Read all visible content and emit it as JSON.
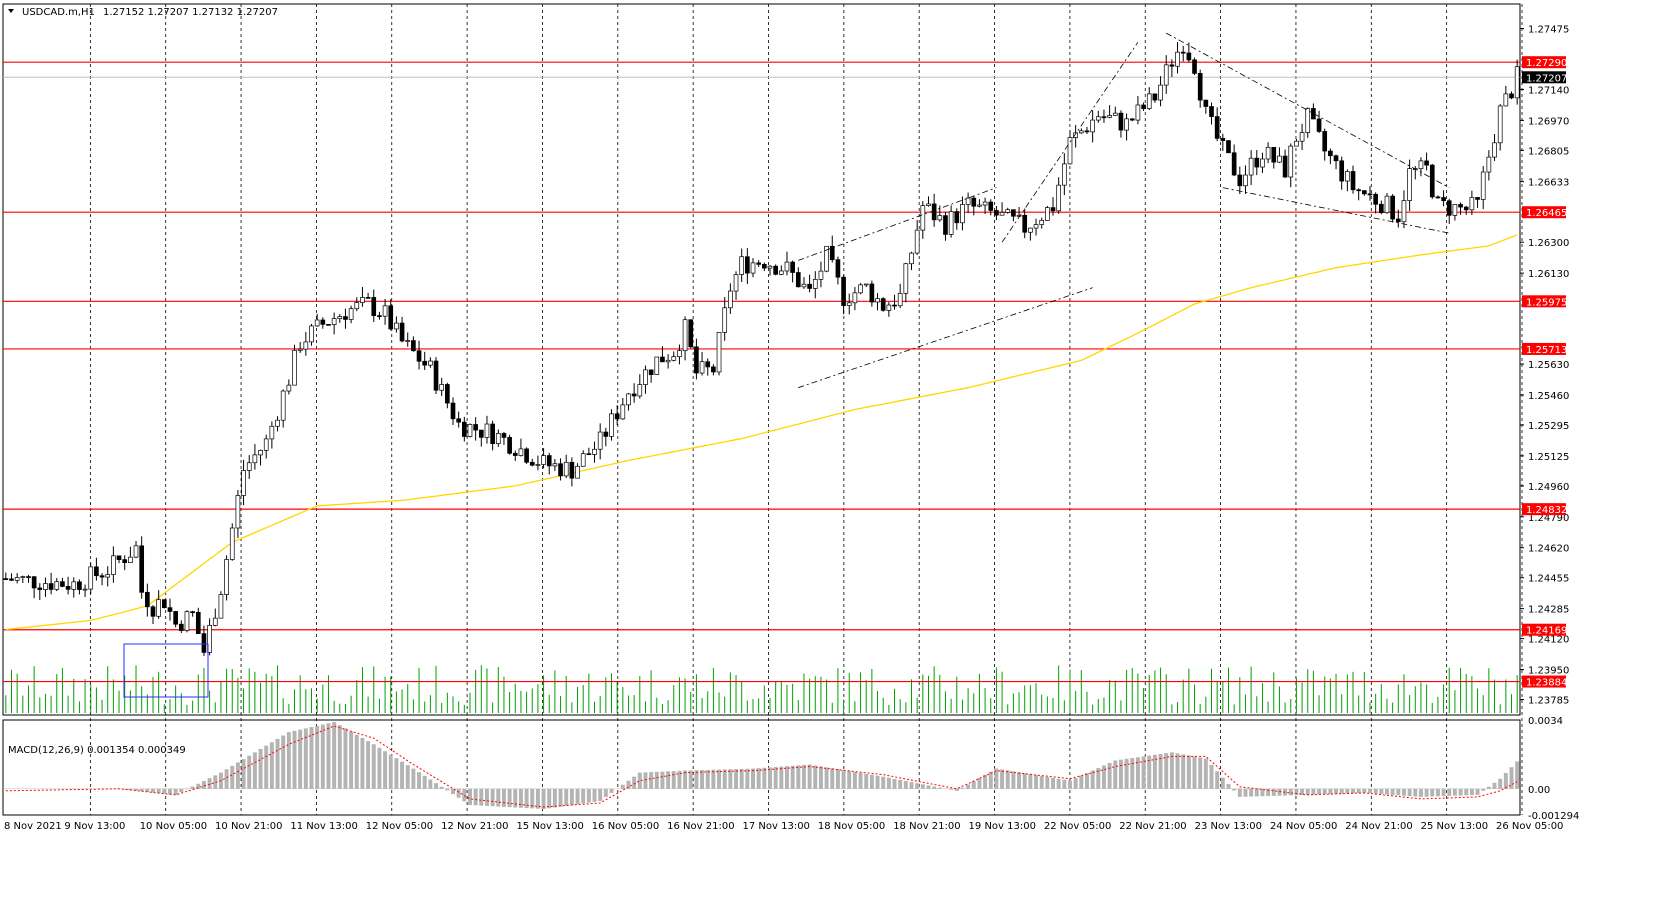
{
  "header": {
    "symbol_label": "USDCAD.m,H1",
    "ohlc_label": "1.27152 1.27207 1.27132 1.27207"
  },
  "macd_label": "MACD(12,26,9) 0.001354 0.000349",
  "colors": {
    "background": "#ffffff",
    "grid": "#000000",
    "candle": "#000000",
    "volume": "#00a000",
    "level": "#ff0000",
    "ma": "#ffd700",
    "macd_hist": "#b4b4b4",
    "signal": "#ff0000",
    "selection_box": "#2b2bff"
  },
  "chart_data": {
    "type": "candlestick",
    "symbol": "USDCAD.m",
    "timeframe": "H1",
    "price_axis": {
      "range": [
        1.237,
        1.2761
      ],
      "tick_labels": [
        "1.27475",
        "1.27140",
        "1.26970",
        "1.26805",
        "1.26633",
        "1.26300",
        "1.26130",
        "1.25630",
        "1.25460",
        "1.25295",
        "1.25125",
        "1.24960",
        "1.24790",
        "1.24620",
        "1.24455",
        "1.24285",
        "1.24120",
        "1.23950",
        "1.23785"
      ]
    },
    "levels": [
      {
        "value": 1.2729,
        "label": "1.27290"
      },
      {
        "value": 1.26465,
        "label": "1.26465"
      },
      {
        "value": 1.25975,
        "label": "1.25975"
      },
      {
        "value": 1.25713,
        "label": "1.25713"
      },
      {
        "value": 1.24832,
        "label": "1.24832"
      },
      {
        "value": 1.24169,
        "label": "1.24169"
      },
      {
        "value": 1.23884,
        "label": "1.23884"
      }
    ],
    "current_price": {
      "value": 1.27207,
      "label": "1.27207"
    },
    "time_labels": [
      "8 Nov 2021",
      "9 Nov 13:00",
      "10 Nov 05:00",
      "10 Nov 21:00",
      "11 Nov 13:00",
      "12 Nov 05:00",
      "12 Nov 21:00",
      "15 Nov 13:00",
      "16 Nov 05:00",
      "16 Nov 21:00",
      "17 Nov 13:00",
      "18 Nov 05:00",
      "18 Nov 21:00",
      "19 Nov 13:00",
      "22 Nov 05:00",
      "22 Nov 21:00",
      "23 Nov 13:00",
      "24 Nov 05:00",
      "24 Nov 21:00",
      "25 Nov 13:00",
      "26 Nov 05:00"
    ],
    "close_path": [
      [
        0,
        1.2445
      ],
      [
        12,
        1.2442
      ],
      [
        18,
        1.245
      ],
      [
        23,
        1.2462
      ],
      [
        24,
        1.2438
      ],
      [
        26,
        1.243
      ],
      [
        28,
        1.2433
      ],
      [
        30,
        1.242
      ],
      [
        33,
        1.2425
      ],
      [
        35,
        1.2405
      ],
      [
        38,
        1.244
      ],
      [
        42,
        1.2505
      ],
      [
        46,
        1.252
      ],
      [
        50,
        1.2555
      ],
      [
        52,
        1.2575
      ],
      [
        56,
        1.2585
      ],
      [
        60,
        1.2592
      ],
      [
        64,
        1.2596
      ],
      [
        67,
        1.259
      ],
      [
        70,
        1.2575
      ],
      [
        75,
        1.256
      ],
      [
        80,
        1.253
      ],
      [
        86,
        1.2525
      ],
      [
        90,
        1.2518
      ],
      [
        95,
        1.2508
      ],
      [
        100,
        1.2505
      ],
      [
        105,
        1.252
      ],
      [
        110,
        1.2548
      ],
      [
        115,
        1.2565
      ],
      [
        118,
        1.257
      ],
      [
        120,
        1.2582
      ],
      [
        122,
        1.2558
      ],
      [
        125,
        1.256
      ],
      [
        128,
        1.2605
      ],
      [
        130,
        1.2618
      ],
      [
        134,
        1.262
      ],
      [
        138,
        1.2615
      ],
      [
        142,
        1.2602
      ],
      [
        145,
        1.2622
      ],
      [
        148,
        1.26
      ],
      [
        152,
        1.2605
      ],
      [
        155,
        1.2595
      ],
      [
        158,
        1.26
      ],
      [
        162,
        1.265
      ],
      [
        166,
        1.264
      ],
      [
        170,
        1.265
      ],
      [
        175,
        1.2645
      ],
      [
        180,
        1.2638
      ],
      [
        185,
        1.265
      ],
      [
        188,
        1.2685
      ],
      [
        193,
        1.27
      ],
      [
        198,
        1.2695
      ],
      [
        203,
        1.271
      ],
      [
        206,
        1.273
      ],
      [
        208,
        1.274
      ],
      [
        210,
        1.2728
      ],
      [
        212,
        1.27
      ],
      [
        215,
        1.268
      ],
      [
        218,
        1.2665
      ],
      [
        222,
        1.268
      ],
      [
        226,
        1.267
      ],
      [
        228,
        1.2688
      ],
      [
        230,
        1.2698
      ],
      [
        233,
        1.268
      ],
      [
        238,
        1.266
      ],
      [
        243,
        1.2652
      ],
      [
        246,
        1.2645
      ],
      [
        248,
        1.2668
      ],
      [
        251,
        1.267
      ],
      [
        253,
        1.265
      ],
      [
        258,
        1.2648
      ],
      [
        260,
        1.265
      ],
      [
        261,
        1.2665
      ],
      [
        264,
        1.2702
      ],
      [
        266,
        1.2714
      ],
      [
        267,
        1.27207
      ]
    ],
    "moving_average": [
      [
        0,
        1.2417
      ],
      [
        15,
        1.2422
      ],
      [
        25,
        1.243
      ],
      [
        40,
        1.2465
      ],
      [
        55,
        1.2485
      ],
      [
        70,
        1.2488
      ],
      [
        90,
        1.2496
      ],
      [
        110,
        1.251
      ],
      [
        130,
        1.2522
      ],
      [
        150,
        1.2538
      ],
      [
        170,
        1.255
      ],
      [
        190,
        1.2565
      ],
      [
        200,
        1.258
      ],
      [
        210,
        1.2596
      ],
      [
        220,
        1.2605
      ],
      [
        235,
        1.2616
      ],
      [
        250,
        1.2623
      ],
      [
        262,
        1.2628
      ],
      [
        267,
        1.2634
      ]
    ],
    "macd": {
      "label": "MACD(12,26,9) 0.001354 0.000349",
      "range": [
        -0.001294,
        0.0034
      ],
      "tick_labels": [
        "0.0034",
        "0.00",
        "-0.001294"
      ],
      "histogram_path": [
        [
          0,
          0.0
        ],
        [
          20,
          0.0
        ],
        [
          30,
          -0.0003
        ],
        [
          38,
          0.0008
        ],
        [
          50,
          0.0028
        ],
        [
          58,
          0.0033
        ],
        [
          65,
          0.0022
        ],
        [
          72,
          0.001
        ],
        [
          82,
          -0.0008
        ],
        [
          95,
          -0.001
        ],
        [
          105,
          -0.0006
        ],
        [
          112,
          0.0008
        ],
        [
          120,
          0.0009
        ],
        [
          132,
          0.001
        ],
        [
          142,
          0.0012
        ],
        [
          155,
          0.0006
        ],
        [
          168,
          -0.0001
        ],
        [
          175,
          0.001
        ],
        [
          188,
          0.0004
        ],
        [
          196,
          0.0014
        ],
        [
          206,
          0.0018
        ],
        [
          212,
          0.0015
        ],
        [
          218,
          -0.0004
        ],
        [
          230,
          -0.0003
        ],
        [
          240,
          -0.0002
        ],
        [
          250,
          -0.0004
        ],
        [
          260,
          -0.0003
        ],
        [
          264,
          0.0005
        ],
        [
          267,
          0.00135
        ]
      ],
      "signal_path": [
        [
          0,
          -0.0001
        ],
        [
          20,
          0.0
        ],
        [
          30,
          -0.0003
        ],
        [
          38,
          0.0004
        ],
        [
          50,
          0.0022
        ],
        [
          58,
          0.0031
        ],
        [
          65,
          0.0025
        ],
        [
          72,
          0.0012
        ],
        [
          82,
          -0.0005
        ],
        [
          95,
          -0.0009
        ],
        [
          105,
          -0.0007
        ],
        [
          112,
          0.0004
        ],
        [
          120,
          0.0008
        ],
        [
          132,
          0.0009
        ],
        [
          142,
          0.0011
        ],
        [
          155,
          0.0007
        ],
        [
          168,
          0.0
        ],
        [
          175,
          0.0009
        ],
        [
          188,
          0.0005
        ],
        [
          196,
          0.0011
        ],
        [
          206,
          0.0016
        ],
        [
          212,
          0.0016
        ],
        [
          218,
          0.0001
        ],
        [
          230,
          -0.0003
        ],
        [
          240,
          -0.0002
        ],
        [
          250,
          -0.0005
        ],
        [
          260,
          -0.0004
        ],
        [
          264,
          -0.0001
        ],
        [
          267,
          0.00035
        ]
      ]
    },
    "trendlines_price": [
      [
        [
          140,
          1.262
        ],
        [
          175,
          1.266
        ]
      ],
      [
        [
          140,
          1.255
        ],
        [
          192,
          1.2605
        ]
      ],
      [
        [
          176,
          1.263
        ],
        [
          200,
          1.274
        ]
      ],
      [
        [
          205,
          1.2745
        ],
        [
          255,
          1.266
        ]
      ],
      [
        [
          215,
          1.266
        ],
        [
          255,
          1.2635
        ]
      ]
    ]
  }
}
